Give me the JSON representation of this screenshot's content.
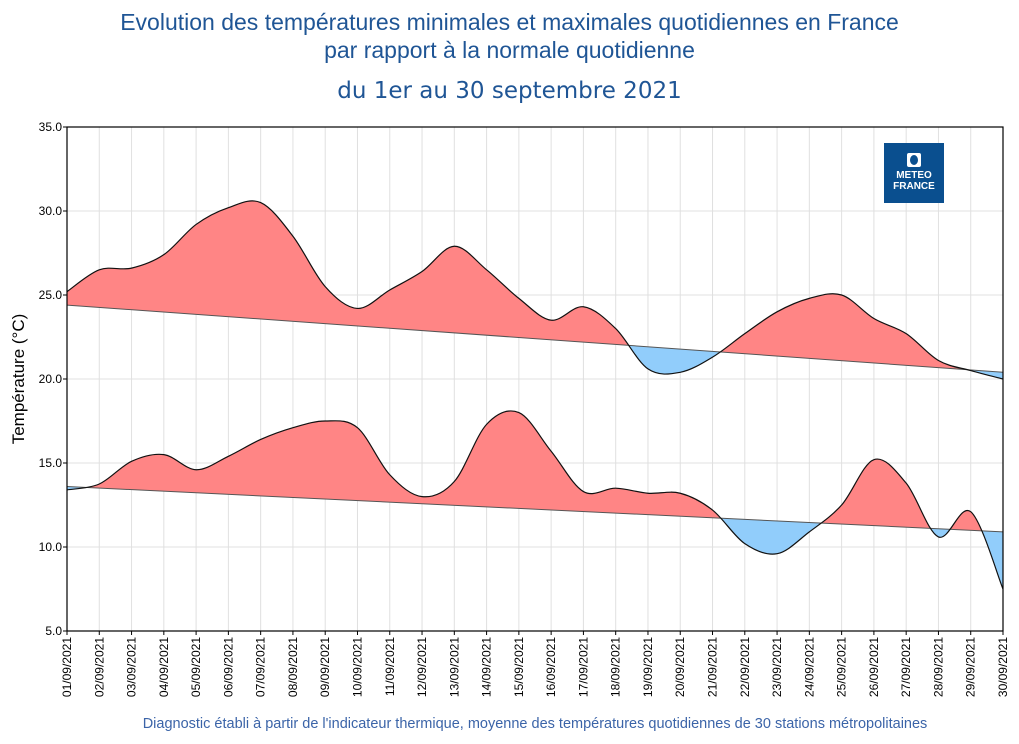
{
  "title_line1": "Evolution des températures minimales et maximales quotidiennes en France",
  "title_line2": "par rapport à la normale quotidienne",
  "subtitle": "du 1er au 30 septembre 2021",
  "footer": "Diagnostic établi à partir de l'indicateur thermique, moyenne des températures quotidiennes de 30 stations métropolitaines",
  "logo_text": "METEO FRANCE",
  "colors": {
    "above_normal": "#ff8585",
    "below_normal": "#91cdfb",
    "title": "#1f5595"
  },
  "chart_data": {
    "type": "area",
    "ylabel": "Température (°C)",
    "ylim": [
      5,
      35
    ],
    "yticks": [
      "5.0",
      "10.0",
      "15.0",
      "20.0",
      "25.0",
      "30.0",
      "35.0"
    ],
    "grid": true,
    "x": [
      "01/09/2021",
      "02/09/2021",
      "03/09/2021",
      "04/09/2021",
      "05/09/2021",
      "06/09/2021",
      "07/09/2021",
      "08/09/2021",
      "09/09/2021",
      "10/09/2021",
      "11/09/2021",
      "12/09/2021",
      "13/09/2021",
      "14/09/2021",
      "15/09/2021",
      "16/09/2021",
      "17/09/2021",
      "18/09/2021",
      "19/09/2021",
      "20/09/2021",
      "21/09/2021",
      "22/09/2021",
      "23/09/2021",
      "24/09/2021",
      "25/09/2021",
      "26/09/2021",
      "27/09/2021",
      "28/09/2021",
      "29/09/2021",
      "30/09/2021"
    ],
    "series": [
      {
        "id": "tmax",
        "values": [
          25.2,
          26.5,
          26.6,
          27.4,
          29.2,
          30.2,
          30.5,
          28.5,
          25.5,
          24.2,
          25.3,
          26.4,
          27.9,
          26.5,
          24.8,
          23.5,
          24.3,
          23.0,
          20.6,
          20.4,
          21.3,
          22.7,
          24.0,
          24.8,
          25.0,
          23.6,
          22.7,
          21.1,
          20.5,
          20.0
        ],
        "normal": [
          24.4,
          20.4
        ]
      },
      {
        "id": "tmin",
        "values": [
          13.4,
          13.75,
          15.1,
          15.5,
          14.6,
          15.4,
          16.4,
          17.1,
          17.5,
          17.1,
          14.3,
          13.0,
          13.9,
          17.3,
          18.0,
          15.7,
          13.3,
          13.5,
          13.2,
          13.2,
          12.2,
          10.2,
          9.6,
          10.9,
          12.5,
          15.2,
          13.8,
          10.6,
          12.1,
          7.5
        ],
        "normal": [
          13.6,
          10.9
        ]
      }
    ]
  }
}
